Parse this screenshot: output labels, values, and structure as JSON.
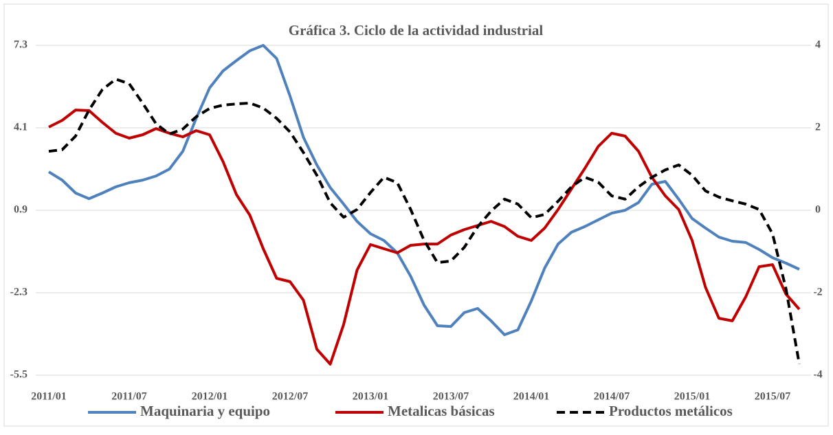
{
  "chart_data": {
    "type": "line",
    "title": "Gráfica 3. Ciclo de la actividad industrial",
    "categories": [
      "2011/01",
      null,
      null,
      null,
      null,
      null,
      "2011/07",
      null,
      null,
      null,
      null,
      null,
      "2012/01",
      null,
      null,
      null,
      null,
      null,
      "2012/07",
      null,
      null,
      null,
      null,
      null,
      "2013/01",
      null,
      null,
      null,
      null,
      null,
      "2013/07",
      null,
      null,
      null,
      null,
      null,
      "2014/01",
      null,
      null,
      null,
      null,
      null,
      "2014/07",
      null,
      null,
      null,
      null,
      null,
      "2015/01",
      null,
      null,
      null,
      null,
      null,
      "2015/07",
      null,
      null
    ],
    "series": [
      {
        "name": "Maquinaria y equipo",
        "color": "#4f81bd",
        "dash": false,
        "values": [
          2.39,
          2.07,
          1.57,
          1.35,
          1.57,
          1.81,
          1.97,
          2.07,
          2.23,
          2.5,
          3.19,
          4.47,
          5.65,
          6.31,
          6.71,
          7.09,
          7.3,
          6.79,
          5.33,
          3.73,
          2.66,
          1.78,
          1.14,
          0.47,
          -0.01,
          -0.27,
          -0.75,
          -1.66,
          -2.78,
          -3.58,
          -3.61,
          -3.07,
          -2.91,
          -3.39,
          -3.93,
          -3.74,
          -2.62,
          -1.34,
          -0.41,
          0.05,
          0.27,
          0.53,
          0.79,
          0.9,
          1.2,
          1.91,
          2.02,
          1.33,
          0.58,
          0.21,
          -0.14,
          -0.3,
          -0.35,
          -0.62,
          -0.94,
          -1.15,
          -1.39
        ]
      },
      {
        "name": "Metalicas básicas",
        "color": "#c00000",
        "dash": false,
        "values": [
          4.13,
          4.39,
          4.79,
          4.77,
          4.31,
          3.89,
          3.7,
          3.83,
          4.07,
          3.89,
          3.75,
          3.99,
          3.83,
          2.79,
          1.51,
          0.71,
          -0.59,
          -1.74,
          -1.87,
          -2.59,
          -4.49,
          -5.07,
          -3.53,
          -1.42,
          -0.43,
          -0.59,
          -0.75,
          -0.46,
          -0.41,
          -0.41,
          -0.06,
          0.15,
          0.31,
          0.47,
          0.27,
          -0.11,
          -0.27,
          0.21,
          0.93,
          1.73,
          2.53,
          3.38,
          3.89,
          3.78,
          3.19,
          2.18,
          1.46,
          0.93,
          -0.27,
          -2.09,
          -3.29,
          -3.39,
          -2.46,
          -1.29,
          -1.21,
          -2.35,
          -2.94
        ]
      },
      {
        "name": "Productos metálicos",
        "color": "#000000",
        "dash": true,
        "axis": "y2",
        "values": [
          1.43,
          1.47,
          1.8,
          2.43,
          2.93,
          3.18,
          3.07,
          2.6,
          2.1,
          1.85,
          1.97,
          2.27,
          2.47,
          2.55,
          2.58,
          2.6,
          2.48,
          2.23,
          1.9,
          1.4,
          0.85,
          0.18,
          -0.17,
          0.02,
          0.43,
          0.8,
          0.67,
          0.02,
          -0.73,
          -1.27,
          -1.23,
          -0.9,
          -0.4,
          -0.02,
          0.27,
          0.15,
          -0.18,
          -0.1,
          0.22,
          0.57,
          0.8,
          0.68,
          0.35,
          0.27,
          0.57,
          0.8,
          0.98,
          1.1,
          0.85,
          0.47,
          0.32,
          0.23,
          0.15,
          0.02,
          -0.57,
          -1.9,
          -3.73
        ]
      }
    ],
    "ylim": [
      -5.5,
      7.3
    ],
    "yticks": [
      -5.5,
      -2.3,
      0.9,
      4.1,
      7.3
    ],
    "y2lim": [
      -4,
      4
    ],
    "y2ticks": [
      -4,
      -2,
      0,
      2,
      4
    ],
    "grid": true,
    "legend": "bottom"
  }
}
